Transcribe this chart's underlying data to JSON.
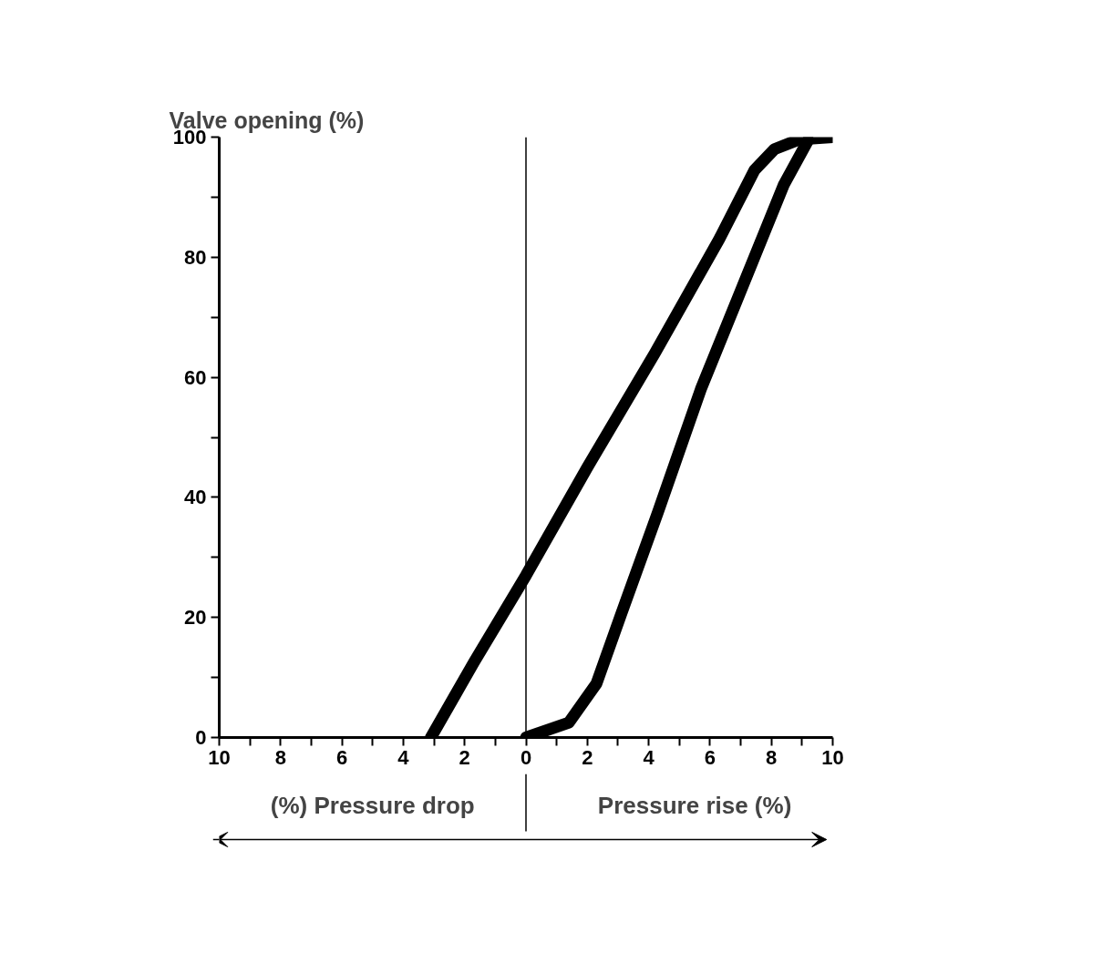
{
  "chart_data": {
    "type": "line",
    "ylabel": "Valve opening (%)",
    "annotations": [
      "(%) Pressure drop",
      "Pressure rise (%)"
    ],
    "xlim": [
      -10,
      10
    ],
    "ylim": [
      0,
      100
    ],
    "xticks": [
      {
        "value": -10,
        "label": "10"
      },
      {
        "value": -9,
        "label": null
      },
      {
        "value": -8,
        "label": "8"
      },
      {
        "value": -7,
        "label": null
      },
      {
        "value": -6,
        "label": "6"
      },
      {
        "value": -5,
        "label": null
      },
      {
        "value": -4,
        "label": "4"
      },
      {
        "value": -3,
        "label": null
      },
      {
        "value": -2,
        "label": "2"
      },
      {
        "value": -1,
        "label": null
      },
      0,
      {
        "value": 1,
        "label": null
      },
      2,
      {
        "value": 3,
        "label": null
      },
      4,
      {
        "value": 5,
        "label": null
      },
      6,
      {
        "value": 7,
        "label": null
      },
      8,
      {
        "value": 9,
        "label": null
      },
      10
    ],
    "yticks": [
      0,
      {
        "value": 10,
        "label": null
      },
      20,
      {
        "value": 30,
        "label": null
      },
      40,
      {
        "value": 50,
        "label": null
      },
      60,
      {
        "value": 70,
        "label": null
      },
      80,
      {
        "value": 90,
        "label": null
      },
      100
    ],
    "ref_lines": [
      {
        "axis": "x",
        "value": 0,
        "color": "#000000"
      }
    ],
    "line_style": "solid",
    "series": [
      {
        "color": "#000000",
        "x": [
          -3.1,
          -1.7,
          0,
          2.0,
          4.2,
          6.3,
          7.45,
          8.1,
          8.9,
          10
        ],
        "values": [
          0,
          12.5,
          27,
          45,
          64,
          83,
          94.5,
          98,
          99.6,
          100
        ]
      },
      {
        "color": "#000000",
        "x": [
          0,
          1.4,
          2.3,
          3.1,
          4.3,
          5.7,
          7.05,
          8.4,
          9.2
        ],
        "values": [
          0,
          2.5,
          9,
          20.5,
          37.5,
          58,
          75,
          92,
          99.5
        ]
      }
    ]
  }
}
